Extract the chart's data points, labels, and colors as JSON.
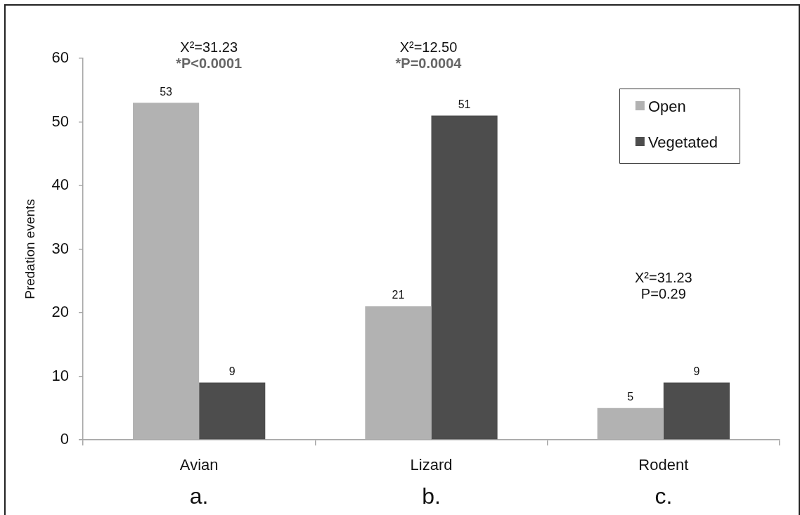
{
  "chart_data": {
    "type": "bar",
    "categories": [
      "Avian",
      "Lizard",
      "Rodent"
    ],
    "series": [
      {
        "name": "Open",
        "color": "#b2b2b2",
        "values": [
          53,
          21,
          5
        ]
      },
      {
        "name": "Vegetated",
        "color": "#4d4d4d",
        "values": [
          9,
          51,
          9
        ]
      }
    ],
    "data_labels": true,
    "ylabel": "Predation events",
    "ylim": [
      0,
      60
    ],
    "yticks": [
      0,
      10,
      20,
      30,
      40,
      50,
      60
    ],
    "legend": "top right",
    "annotations": [
      "X²=31.23\n*P<0.0001",
      "X²=12.50\n*P=0.0004",
      "X²=31.23\nP=0.29",
      "a.",
      "b.",
      "c."
    ]
  }
}
